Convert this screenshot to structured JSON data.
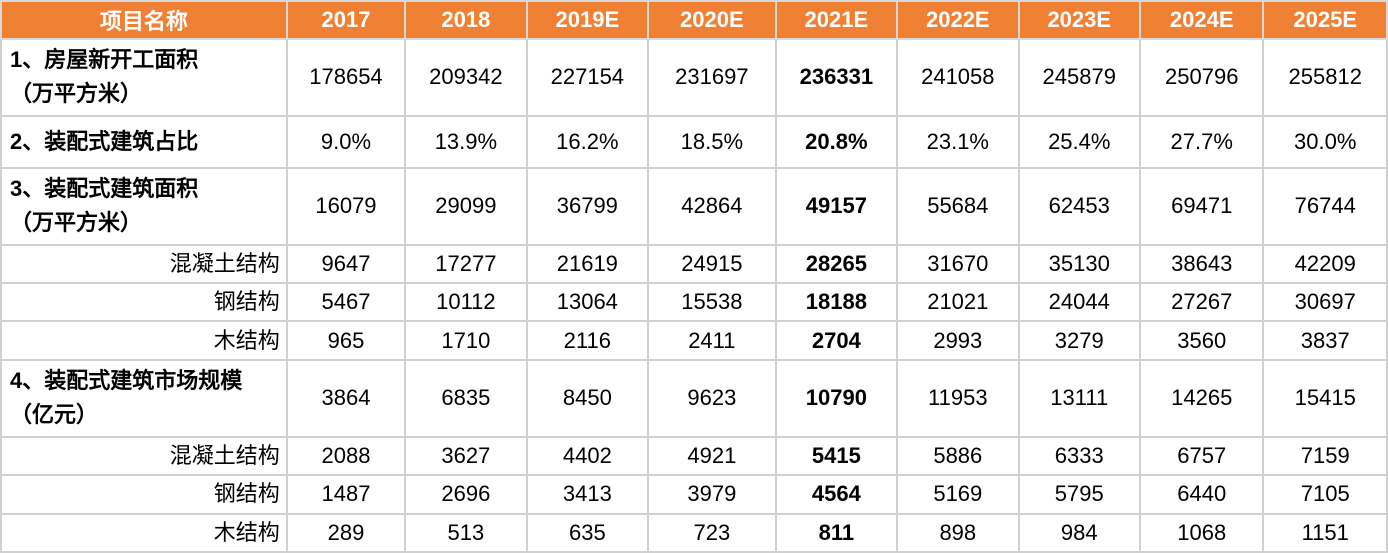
{
  "chart_data": {
    "type": "table",
    "columns": [
      "项目名称",
      "2017",
      "2018",
      "2019E",
      "2020E",
      "2021E",
      "2022E",
      "2023E",
      "2024E",
      "2025E"
    ],
    "highlight_column": "2021E",
    "rows": [
      {
        "label": [
          "1、房屋新开工面积",
          "（万平方米）"
        ],
        "values": [
          "178654",
          "209342",
          "227154",
          "231697",
          "236331",
          "241058",
          "245879",
          "250796",
          "255812"
        ]
      },
      {
        "label": [
          "2、装配式建筑占比"
        ],
        "values": [
          "9.0%",
          "13.9%",
          "16.2%",
          "18.5%",
          "20.8%",
          "23.1%",
          "25.4%",
          "27.7%",
          "30.0%"
        ]
      },
      {
        "label": [
          "3、装配式建筑面积",
          "（万平方米）"
        ],
        "values": [
          "16079",
          "29099",
          "36799",
          "42864",
          "49157",
          "55684",
          "62453",
          "69471",
          "76744"
        ]
      },
      {
        "label": [
          "混凝土结构"
        ],
        "sub": true,
        "values": [
          "9647",
          "17277",
          "21619",
          "24915",
          "28265",
          "31670",
          "35130",
          "38643",
          "42209"
        ]
      },
      {
        "label": [
          "钢结构"
        ],
        "sub": true,
        "values": [
          "5467",
          "10112",
          "13064",
          "15538",
          "18188",
          "21021",
          "24044",
          "27267",
          "30697"
        ]
      },
      {
        "label": [
          "木结构"
        ],
        "sub": true,
        "values": [
          "965",
          "1710",
          "2116",
          "2411",
          "2704",
          "2993",
          "3279",
          "3560",
          "3837"
        ]
      },
      {
        "label": [
          "4、装配式建筑市场规模",
          "（亿元）"
        ],
        "values": [
          "3864",
          "6835",
          "8450",
          "9623",
          "10790",
          "11953",
          "13111",
          "14265",
          "15415"
        ]
      },
      {
        "label": [
          "混凝土结构"
        ],
        "sub": true,
        "values": [
          "2088",
          "3627",
          "4402",
          "4921",
          "5415",
          "5886",
          "6333",
          "6757",
          "7159"
        ]
      },
      {
        "label": [
          "钢结构"
        ],
        "sub": true,
        "values": [
          "1487",
          "2696",
          "3413",
          "3979",
          "4564",
          "5169",
          "5795",
          "6440",
          "7105"
        ]
      },
      {
        "label": [
          "木结构"
        ],
        "sub": true,
        "values": [
          "289",
          "513",
          "635",
          "723",
          "811",
          "898",
          "984",
          "1068",
          "1151"
        ]
      }
    ]
  }
}
